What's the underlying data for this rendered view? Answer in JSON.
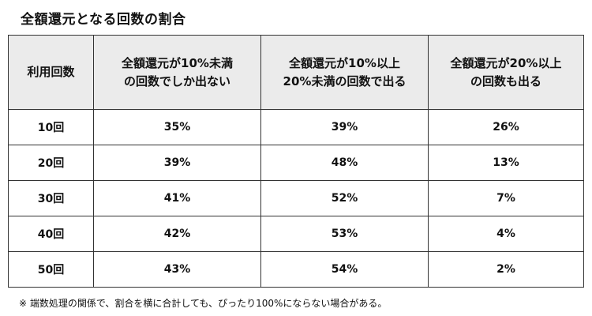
{
  "title": "全額還元となる回数の割合",
  "table": {
    "headers": [
      [
        "利用回数"
      ],
      [
        "全額還元が10%未満",
        "の回数でしか出ない"
      ],
      [
        "全額還元が10%以上",
        "20%未満の回数で出る"
      ],
      [
        "全額還元が20%以上",
        "の回数も出る"
      ]
    ],
    "rows": [
      [
        "10回",
        "35%",
        "39%",
        "26%"
      ],
      [
        "20回",
        "39%",
        "48%",
        "13%"
      ],
      [
        "30回",
        "41%",
        "52%",
        "7%"
      ],
      [
        "40回",
        "42%",
        "53%",
        "4%"
      ],
      [
        "50回",
        "43%",
        "54%",
        "2%"
      ]
    ]
  },
  "note": "※ 端数処理の関係で、割合を横に合計しても、ぴったり100%にならない場合がある。"
}
